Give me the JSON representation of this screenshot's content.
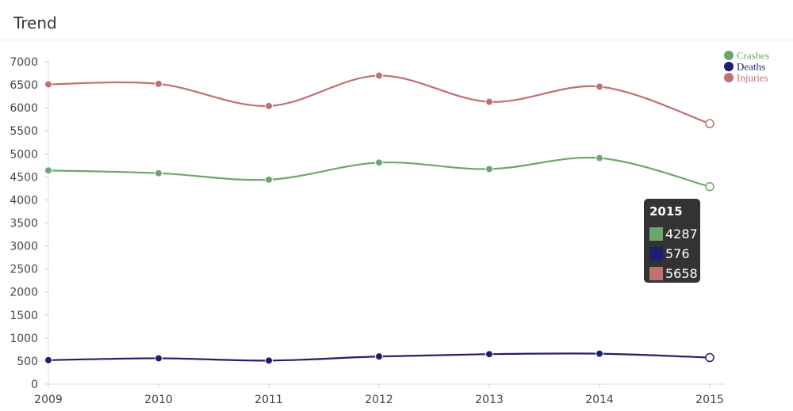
{
  "header": {
    "title": "Trend"
  },
  "chart_data": {
    "type": "line",
    "title": "",
    "xlabel": "",
    "ylabel": "",
    "x": [
      2009,
      2010,
      2011,
      2012,
      2013,
      2014,
      2015
    ],
    "x_ticks": [
      "2009",
      "2010",
      "2011",
      "2012",
      "2013",
      "2014",
      "2015"
    ],
    "ylim": [
      0,
      7000
    ],
    "y_ticks": [
      0,
      500,
      1000,
      1500,
      2000,
      2500,
      3000,
      3500,
      4000,
      4500,
      5000,
      5500,
      6000,
      6500,
      7000
    ],
    "grid": false,
    "legend_position": "top-right",
    "series": [
      {
        "name": "Crashes",
        "color": "#6ea56e",
        "values": [
          4640,
          4580,
          4440,
          4810,
          4670,
          4910,
          4287
        ]
      },
      {
        "name": "Deaths",
        "color": "#1f1f6e",
        "values": [
          520,
          560,
          510,
          600,
          650,
          660,
          576
        ]
      },
      {
        "name": "Injuries",
        "color": "#c07070",
        "values": [
          6510,
          6520,
          6040,
          6700,
          6130,
          6460,
          5658
        ]
      }
    ]
  },
  "tooltip": {
    "title": "2015",
    "rows": [
      {
        "color": "#6ea56e",
        "value": "4287"
      },
      {
        "color": "#1f1f6e",
        "value": "576"
      },
      {
        "color": "#c07070",
        "value": "5658"
      }
    ]
  }
}
